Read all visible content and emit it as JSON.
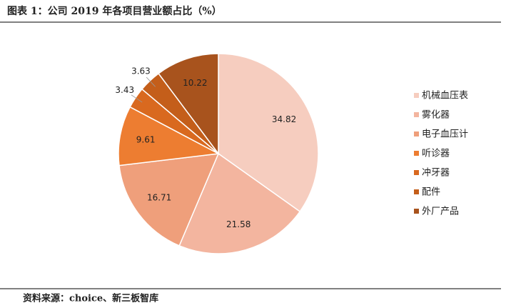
{
  "chart_data": {
    "type": "pie",
    "title": "图表 1：公司 2019 年各项目营业额占比（%）",
    "source": "资料来源：choice、新三板智库",
    "categories": [
      "机械血压表",
      "雾化器",
      "电子血压计",
      "听诊器",
      "冲牙器",
      "配件",
      "外厂产品"
    ],
    "values": [
      34.82,
      21.58,
      16.71,
      9.61,
      3.43,
      3.63,
      10.22
    ],
    "colors": [
      "#f6cdbf",
      "#f3b59f",
      "#ef9f7b",
      "#ed7d31",
      "#d9691f",
      "#c45e1a",
      "#a8531d"
    ],
    "legend": "right"
  }
}
